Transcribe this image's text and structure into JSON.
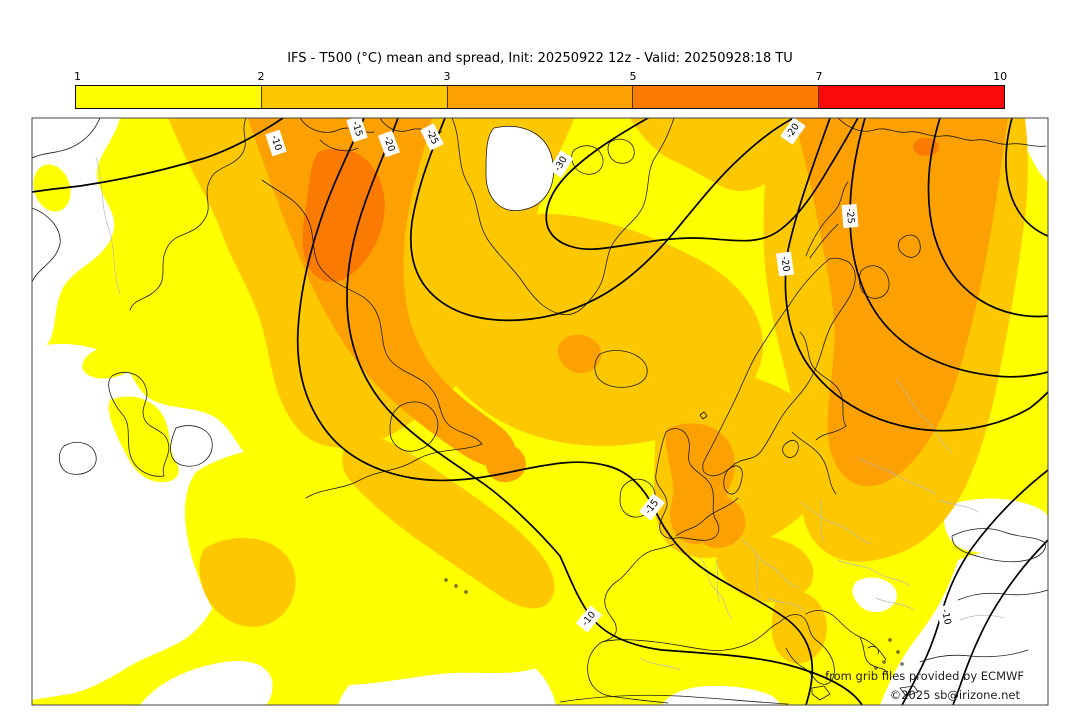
{
  "header": {
    "title": "IFS - T500 (°C) mean and spread, Init: 20250922 12z - Valid: 20250928:18 TU"
  },
  "colorbar": {
    "ticks": [
      "1",
      "2",
      "3",
      "5",
      "7",
      "10"
    ],
    "segments": [
      {
        "range": "1-2",
        "color": "#ffff00"
      },
      {
        "range": "2-3",
        "color": "#fdc800"
      },
      {
        "range": "3-5",
        "color": "#fda102"
      },
      {
        "range": "5-7",
        "color": "#fb7a02"
      },
      {
        "range": "7-10",
        "color": "#fa0b0b"
      }
    ]
  },
  "palette": {
    "below_min": "#ffffff",
    "yellow": "#ffff00",
    "gold": "#fdc800",
    "orange": "#fda102",
    "dark_orange": "#fb7a02",
    "red": "#fa0b0b",
    "coast": "#1c1c1c",
    "country_border": "#b8b8b8",
    "frame": "#444444"
  },
  "map": {
    "contour_labels": [
      {
        "value": "-10"
      },
      {
        "value": "-15"
      },
      {
        "value": "-20"
      },
      {
        "value": "-25"
      },
      {
        "value": "-30"
      },
      {
        "value": "-20"
      },
      {
        "value": "-25"
      },
      {
        "value": "-20"
      },
      {
        "value": "-15"
      },
      {
        "value": "-10"
      },
      {
        "value": "-10"
      }
    ]
  },
  "attribution": {
    "line1": "from grib files provided by ECMWF",
    "line2": "©2025 sb@irizone.net"
  }
}
